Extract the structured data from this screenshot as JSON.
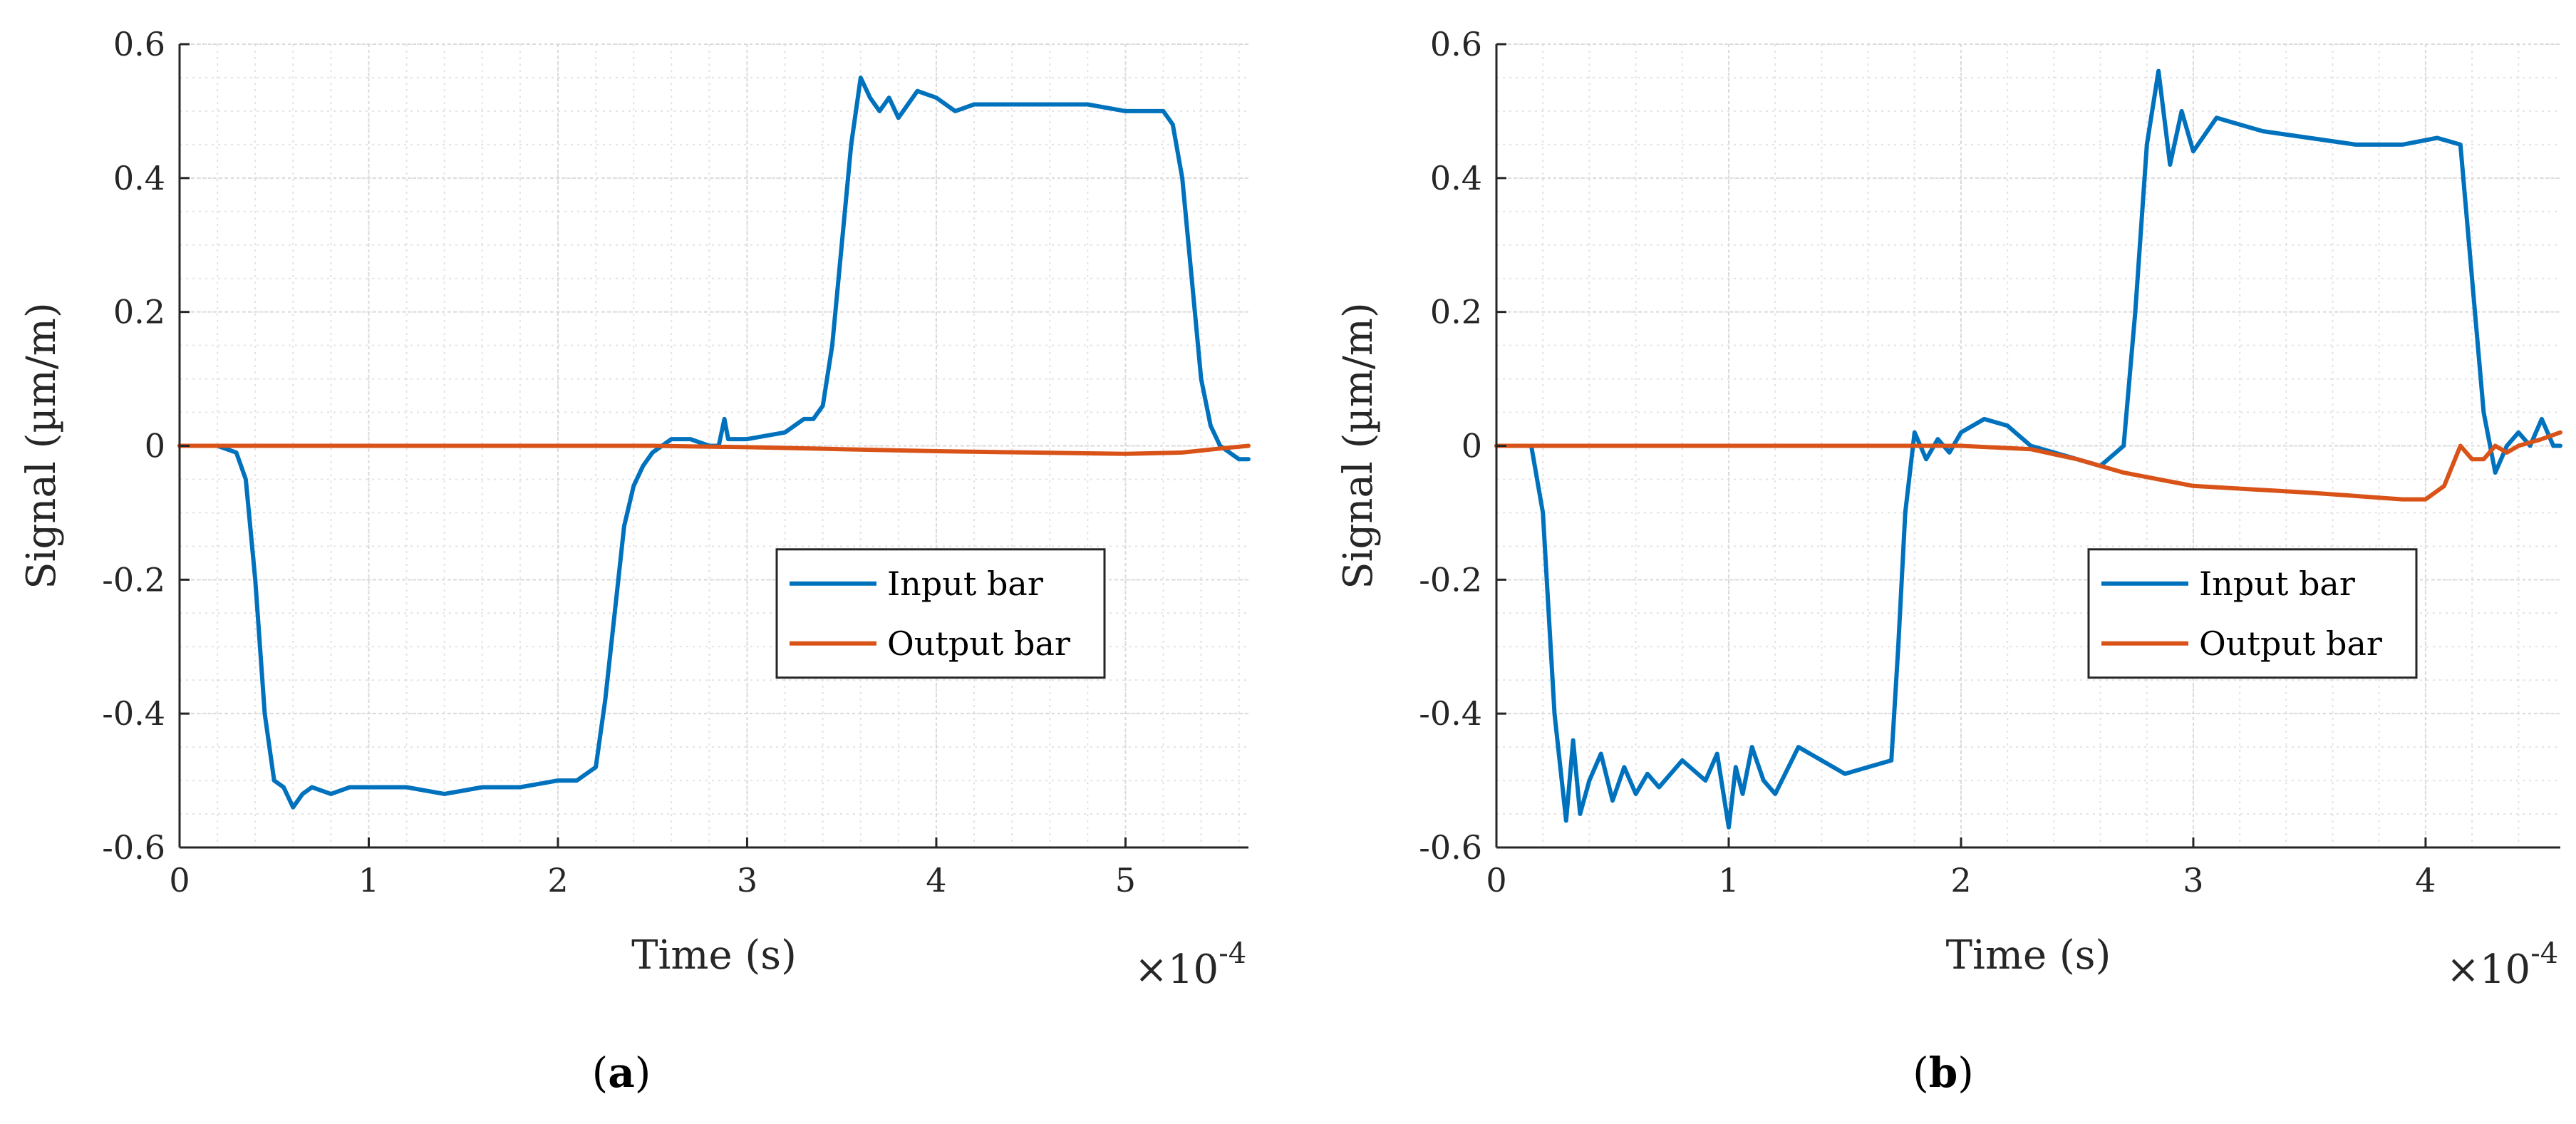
{
  "colors": {
    "input": "#0072BD",
    "output": "#D95319",
    "axis": "#262626",
    "grid": "#d9d9d9"
  },
  "chart_data": [
    {
      "type": "line",
      "panel": "a",
      "caption_open": "(",
      "caption_letter": "a",
      "caption_close": ")",
      "xlabel": "Time (s)",
      "ylabel": "Signal (µm/m)",
      "x_exponent": "×10",
      "x_exponent_power": "-4",
      "xlim": [
        0,
        5.65
      ],
      "ylim": [
        -0.6,
        0.6
      ],
      "xticks": [
        0,
        1,
        2,
        3,
        4,
        5
      ],
      "xtick_labels": [
        "0",
        "1",
        "2",
        "3",
        "4",
        "5"
      ],
      "yticks": [
        -0.6,
        -0.4,
        -0.2,
        0,
        0.2,
        0.4,
        0.6
      ],
      "ytick_labels": [
        "-0.6",
        "-0.4",
        "-0.2",
        "0",
        "0.2",
        "0.4",
        "0.6"
      ],
      "grid": true,
      "legend_position": "lower-right",
      "series": [
        {
          "name": "Input bar",
          "x": [
            0,
            0.2,
            0.3,
            0.35,
            0.4,
            0.45,
            0.5,
            0.55,
            0.6,
            0.65,
            0.7,
            0.8,
            0.9,
            1.0,
            1.2,
            1.4,
            1.6,
            1.8,
            2.0,
            2.1,
            2.2,
            2.25,
            2.3,
            2.35,
            2.4,
            2.45,
            2.5,
            2.55,
            2.6,
            2.7,
            2.8,
            2.85,
            2.88,
            2.9,
            2.95,
            3.0,
            3.2,
            3.3,
            3.35,
            3.4,
            3.45,
            3.5,
            3.55,
            3.6,
            3.65,
            3.7,
            3.75,
            3.8,
            3.85,
            3.9,
            4.0,
            4.1,
            4.2,
            4.4,
            4.6,
            4.8,
            5.0,
            5.2,
            5.25,
            5.3,
            5.35,
            5.4,
            5.45,
            5.5,
            5.55,
            5.6,
            5.65
          ],
          "y": [
            0,
            0,
            -0.01,
            -0.05,
            -0.2,
            -0.4,
            -0.5,
            -0.51,
            -0.54,
            -0.52,
            -0.51,
            -0.52,
            -0.51,
            -0.51,
            -0.51,
            -0.52,
            -0.51,
            -0.51,
            -0.5,
            -0.5,
            -0.48,
            -0.38,
            -0.25,
            -0.12,
            -0.06,
            -0.03,
            -0.01,
            0.0,
            0.01,
            0.01,
            0.0,
            0.0,
            0.04,
            0.01,
            0.01,
            0.01,
            0.02,
            0.04,
            0.04,
            0.06,
            0.15,
            0.3,
            0.45,
            0.55,
            0.52,
            0.5,
            0.52,
            0.49,
            0.51,
            0.53,
            0.52,
            0.5,
            0.51,
            0.51,
            0.51,
            0.51,
            0.5,
            0.5,
            0.48,
            0.4,
            0.25,
            0.1,
            0.03,
            0.0,
            -0.01,
            -0.02,
            -0.02
          ]
        },
        {
          "name": "Output bar",
          "x": [
            0,
            0.5,
            1.0,
            1.5,
            2.0,
            2.5,
            3.0,
            3.5,
            4.0,
            4.5,
            5.0,
            5.3,
            5.5,
            5.65
          ],
          "y": [
            0,
            0,
            0,
            0,
            0,
            0,
            -0.002,
            -0.005,
            -0.008,
            -0.01,
            -0.012,
            -0.01,
            -0.004,
            0
          ]
        }
      ]
    },
    {
      "type": "line",
      "panel": "b",
      "caption_open": "(",
      "caption_letter": "b",
      "caption_close": ")",
      "xlabel": "Time (s)",
      "ylabel": "Signal (µm/m)",
      "x_exponent": "×10",
      "x_exponent_power": "-4",
      "xlim": [
        0,
        4.58
      ],
      "ylim": [
        -0.6,
        0.6
      ],
      "xticks": [
        0,
        1,
        2,
        3,
        4
      ],
      "xtick_labels": [
        "0",
        "1",
        "2",
        "3",
        "4"
      ],
      "yticks": [
        -0.6,
        -0.4,
        -0.2,
        0,
        0.2,
        0.4,
        0.6
      ],
      "ytick_labels": [
        "-0.6",
        "-0.4",
        "-0.2",
        "0",
        "0.2",
        "0.4",
        "0.6"
      ],
      "grid": true,
      "legend_position": "lower-right",
      "series": [
        {
          "name": "Input bar",
          "x": [
            0,
            0.15,
            0.2,
            0.25,
            0.3,
            0.33,
            0.36,
            0.4,
            0.45,
            0.5,
            0.55,
            0.6,
            0.65,
            0.7,
            0.8,
            0.9,
            0.95,
            1.0,
            1.03,
            1.06,
            1.1,
            1.15,
            1.2,
            1.3,
            1.4,
            1.5,
            1.6,
            1.7,
            1.73,
            1.76,
            1.8,
            1.85,
            1.9,
            1.95,
            2.0,
            2.1,
            2.2,
            2.3,
            2.4,
            2.5,
            2.6,
            2.7,
            2.75,
            2.8,
            2.85,
            2.9,
            2.95,
            3.0,
            3.1,
            3.2,
            3.3,
            3.5,
            3.7,
            3.9,
            4.05,
            4.15,
            4.2,
            4.25,
            4.3,
            4.35,
            4.4,
            4.45,
            4.5,
            4.55,
            4.58
          ],
          "y": [
            0,
            0,
            -0.1,
            -0.4,
            -0.56,
            -0.44,
            -0.55,
            -0.5,
            -0.46,
            -0.53,
            -0.48,
            -0.52,
            -0.49,
            -0.51,
            -0.47,
            -0.5,
            -0.46,
            -0.57,
            -0.48,
            -0.52,
            -0.45,
            -0.5,
            -0.52,
            -0.45,
            -0.47,
            -0.49,
            -0.48,
            -0.47,
            -0.3,
            -0.1,
            0.02,
            -0.02,
            0.01,
            -0.01,
            0.02,
            0.04,
            0.03,
            0.0,
            -0.01,
            -0.02,
            -0.03,
            0.0,
            0.2,
            0.45,
            0.56,
            0.42,
            0.5,
            0.44,
            0.49,
            0.48,
            0.47,
            0.46,
            0.45,
            0.45,
            0.46,
            0.45,
            0.25,
            0.05,
            -0.04,
            0.0,
            0.02,
            0.0,
            0.04,
            0.0,
            0.0
          ]
        },
        {
          "name": "Output bar",
          "x": [
            0,
            0.5,
            1.0,
            1.5,
            2.0,
            2.3,
            2.5,
            2.7,
            3.0,
            3.5,
            3.9,
            4.0,
            4.08,
            4.15,
            4.2,
            4.25,
            4.3,
            4.35,
            4.4,
            4.5,
            4.58
          ],
          "y": [
            0,
            0,
            0,
            0,
            0,
            -0.005,
            -0.02,
            -0.04,
            -0.06,
            -0.07,
            -0.08,
            -0.08,
            -0.06,
            0.0,
            -0.02,
            -0.02,
            0.0,
            -0.01,
            0.0,
            0.01,
            0.02
          ]
        }
      ]
    }
  ]
}
